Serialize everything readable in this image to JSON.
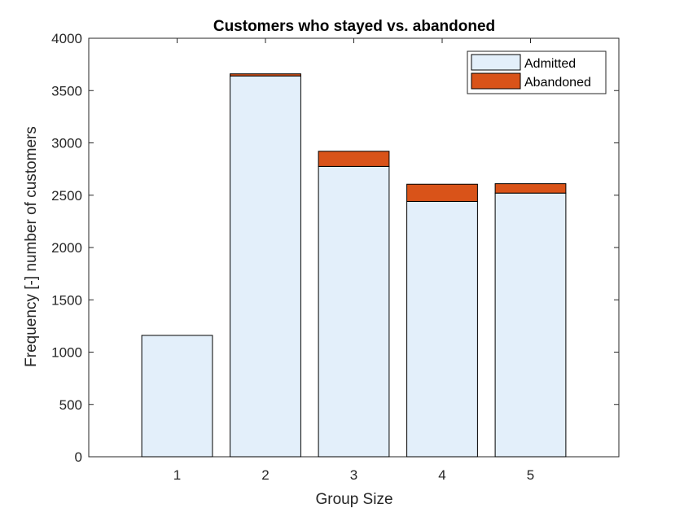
{
  "chart_data": {
    "type": "bar",
    "stacked": true,
    "title": "Customers who stayed vs. abandoned",
    "xlabel": "Group Size",
    "ylabel": "Frequency [-] number of customers",
    "categories": [
      "1",
      "2",
      "3",
      "4",
      "5"
    ],
    "xlim": [
      0,
      6
    ],
    "ylim": [
      0,
      4000
    ],
    "yticks": [
      0,
      500,
      1000,
      1500,
      2000,
      2500,
      3000,
      3500,
      4000
    ],
    "series": [
      {
        "name": "Admitted",
        "values": [
          1160,
          3640,
          2775,
          2440,
          2520
        ],
        "color": "#e3effa"
      },
      {
        "name": "Abandoned",
        "values": [
          0,
          20,
          145,
          165,
          90
        ],
        "color": "#d95319"
      }
    ],
    "legend_position": "top-right",
    "grid": false
  }
}
